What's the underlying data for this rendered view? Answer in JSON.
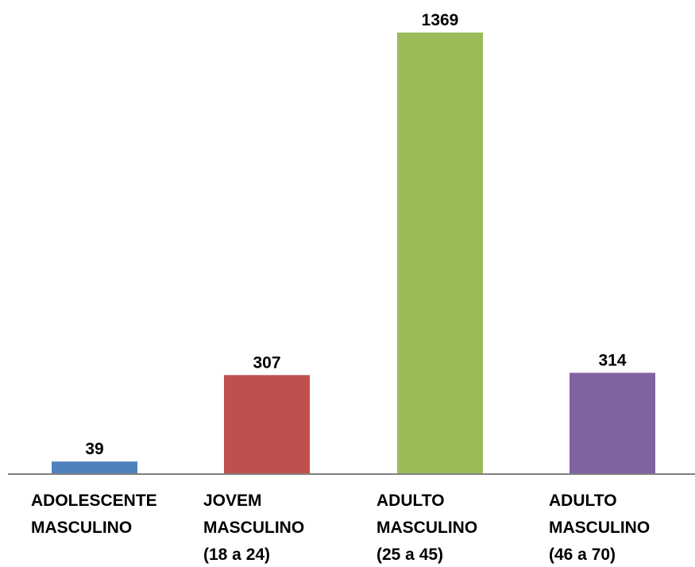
{
  "chart_data": {
    "type": "bar",
    "categories": [
      [
        "ADOLESCENTE",
        "MASCULINO"
      ],
      [
        "JOVEM",
        "MASCULINO",
        "(18 a 24)"
      ],
      [
        "ADULTO",
        "MASCULINO",
        "(25 a 45)"
      ],
      [
        "ADULTO",
        "MASCULINO",
        "(46 a 70)"
      ]
    ],
    "values": [
      39,
      307,
      1369,
      314
    ],
    "data_labels": [
      "39",
      "307",
      "1369",
      "314"
    ],
    "colors": [
      "#4F81BD",
      "#C0504D",
      "#9BBB59",
      "#8064A2"
    ],
    "title": "",
    "xlabel": "",
    "ylabel": "",
    "ylim": [
      0,
      1369
    ],
    "grid": false,
    "legend": "none",
    "axis_color": "#808080"
  }
}
